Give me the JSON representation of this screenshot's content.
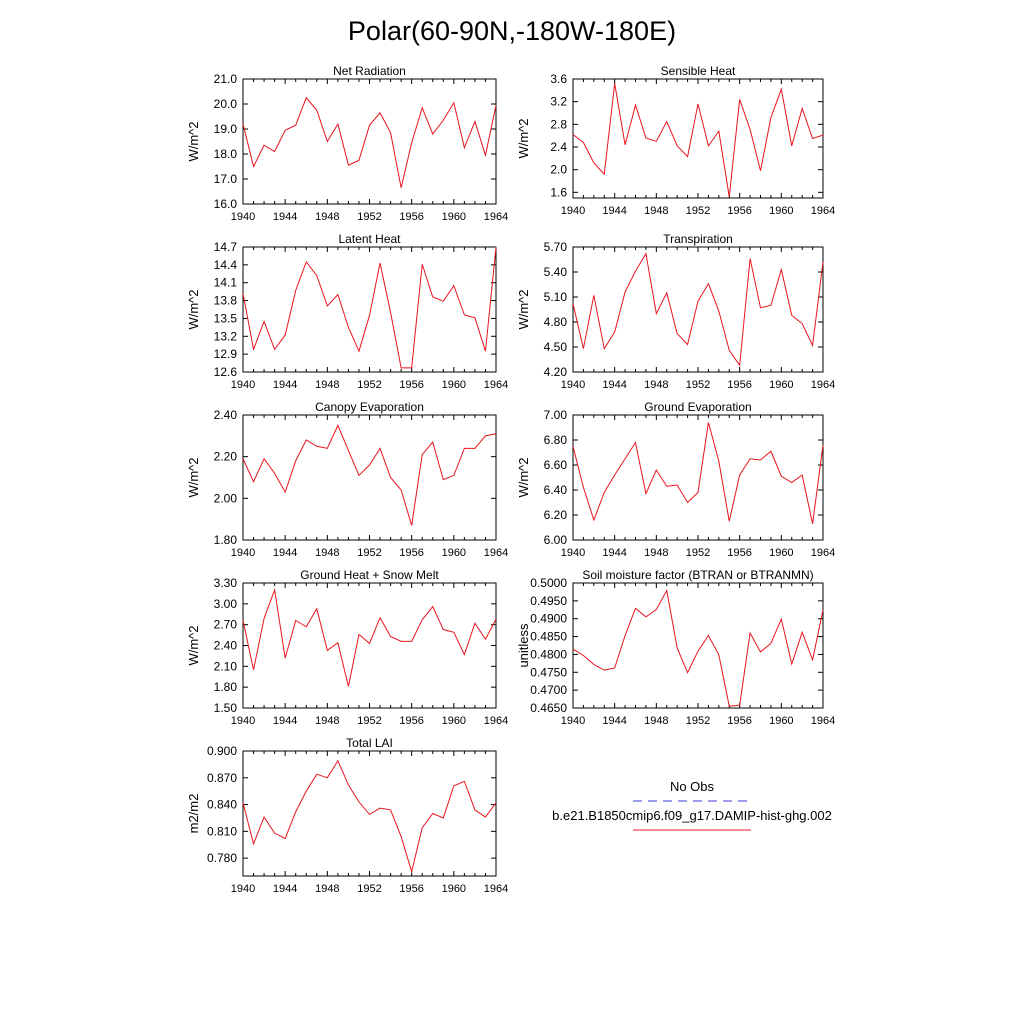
{
  "page": {
    "title": "Polar(60-90N,-180W-180E)"
  },
  "legend": {
    "entries": [
      {
        "label": "No Obs",
        "color": "#3a3ad6",
        "style": "dashed"
      },
      {
        "label": "b.e21.B1850cmip6.f09_g17.DAMIP-hist-ghg.002",
        "color": "#e8141e",
        "style": "solid"
      }
    ]
  },
  "chart_data": [
    {
      "type": "line",
      "title": "Net Radiation",
      "ylabel": "W/m^2",
      "ylim": [
        16.0,
        21.0
      ],
      "yticks": [
        "16.0",
        "17.0",
        "18.0",
        "19.0",
        "20.0",
        "21.0"
      ],
      "xlim": [
        1940,
        1964
      ],
      "xticks": [
        "1940",
        "1944",
        "1948",
        "1952",
        "1956",
        "1960",
        "1964"
      ],
      "series": [
        {
          "color": "#e8141e",
          "x": [
            1940,
            1941,
            1942,
            1943,
            1944,
            1945,
            1946,
            1947,
            1948,
            1949,
            1950,
            1951,
            1952,
            1953,
            1954,
            1955,
            1956,
            1957,
            1958,
            1959,
            1960,
            1961,
            1962,
            1963,
            1964
          ],
          "values": [
            19.2,
            17.5,
            18.35,
            18.1,
            18.95,
            19.15,
            20.25,
            19.75,
            18.5,
            19.2,
            17.55,
            17.75,
            19.15,
            19.65,
            18.85,
            16.65,
            18.45,
            19.85,
            18.8,
            19.35,
            20.05,
            18.25,
            19.3,
            17.95,
            19.95
          ]
        }
      ]
    },
    {
      "type": "line",
      "title": "Sensible Heat",
      "ylabel": "W/m^2",
      "ylim": [
        1.5,
        3.6
      ],
      "yticks": [
        "1.6",
        "2.0",
        "2.4",
        "2.8",
        "3.2",
        "3.6"
      ],
      "xlim": [
        1940,
        1964
      ],
      "xticks": [
        "1940",
        "1944",
        "1948",
        "1952",
        "1956",
        "1960",
        "1964"
      ],
      "series": [
        {
          "color": "#e8141e",
          "x": [
            1940,
            1941,
            1942,
            1943,
            1944,
            1945,
            1946,
            1947,
            1948,
            1949,
            1950,
            1951,
            1952,
            1953,
            1954,
            1955,
            1956,
            1957,
            1958,
            1959,
            1960,
            1961,
            1962,
            1963,
            1964
          ],
          "values": [
            2.62,
            2.48,
            2.12,
            1.92,
            3.52,
            2.44,
            3.14,
            2.56,
            2.5,
            2.85,
            2.42,
            2.23,
            3.16,
            2.42,
            2.68,
            1.52,
            3.24,
            2.71,
            1.98,
            2.92,
            3.42,
            2.42,
            3.08,
            2.55,
            2.61
          ]
        }
      ]
    },
    {
      "type": "line",
      "title": "Latent Heat",
      "ylabel": "W/m^2",
      "ylim": [
        12.6,
        14.7
      ],
      "yticks": [
        "12.6",
        "12.9",
        "13.2",
        "13.5",
        "13.8",
        "14.1",
        "14.4",
        "14.7"
      ],
      "xlim": [
        1940,
        1964
      ],
      "xticks": [
        "1940",
        "1944",
        "1948",
        "1952",
        "1956",
        "1960",
        "1964"
      ],
      "series": [
        {
          "color": "#e8141e",
          "x": [
            1940,
            1941,
            1942,
            1943,
            1944,
            1945,
            1946,
            1947,
            1948,
            1949,
            1950,
            1951,
            1952,
            1953,
            1954,
            1955,
            1956,
            1957,
            1958,
            1959,
            1960,
            1961,
            1962,
            1963,
            1964
          ],
          "values": [
            13.92,
            12.98,
            13.45,
            12.98,
            13.22,
            13.97,
            14.45,
            14.22,
            13.71,
            13.9,
            13.35,
            12.95,
            13.55,
            14.43,
            13.6,
            12.67,
            12.67,
            14.41,
            13.86,
            13.79,
            14.05,
            13.56,
            13.51,
            12.95,
            14.7
          ]
        }
      ]
    },
    {
      "type": "line",
      "title": "Transpiration",
      "ylabel": "W/m^2",
      "ylim": [
        4.2,
        5.7
      ],
      "yticks": [
        "4.20",
        "4.50",
        "4.80",
        "5.10",
        "5.40",
        "5.70"
      ],
      "xlim": [
        1940,
        1964
      ],
      "xticks": [
        "1940",
        "1944",
        "1948",
        "1952",
        "1956",
        "1960",
        "1964"
      ],
      "series": [
        {
          "color": "#e8141e",
          "x": [
            1940,
            1941,
            1942,
            1943,
            1944,
            1945,
            1946,
            1947,
            1948,
            1949,
            1950,
            1951,
            1952,
            1953,
            1954,
            1955,
            1956,
            1957,
            1958,
            1959,
            1960,
            1961,
            1962,
            1963,
            1964
          ],
          "values": [
            5.02,
            4.48,
            5.12,
            4.48,
            4.68,
            5.16,
            5.41,
            5.62,
            4.9,
            5.15,
            4.66,
            4.53,
            5.05,
            5.26,
            4.93,
            4.46,
            4.28,
            5.56,
            4.97,
            5.0,
            5.43,
            4.88,
            4.78,
            4.52,
            5.52
          ]
        }
      ]
    },
    {
      "type": "line",
      "title": "Canopy Evaporation",
      "ylabel": "W/m^2",
      "ylim": [
        1.8,
        2.4
      ],
      "yticks": [
        "1.80",
        "2.00",
        "2.20",
        "2.40"
      ],
      "xlim": [
        1940,
        1964
      ],
      "xticks": [
        "1940",
        "1944",
        "1948",
        "1952",
        "1956",
        "1960",
        "1964"
      ],
      "series": [
        {
          "color": "#e8141e",
          "x": [
            1940,
            1941,
            1942,
            1943,
            1944,
            1945,
            1946,
            1947,
            1948,
            1949,
            1950,
            1951,
            1952,
            1953,
            1954,
            1955,
            1956,
            1957,
            1958,
            1959,
            1960,
            1961,
            1962,
            1963,
            1964
          ],
          "values": [
            2.19,
            2.08,
            2.19,
            2.12,
            2.03,
            2.18,
            2.28,
            2.25,
            2.24,
            2.35,
            2.23,
            2.11,
            2.16,
            2.24,
            2.1,
            2.04,
            1.87,
            2.21,
            2.27,
            2.09,
            2.11,
            2.24,
            2.24,
            2.3,
            2.31
          ]
        }
      ]
    },
    {
      "type": "line",
      "title": "Ground Evaporation",
      "ylabel": "W/m^2",
      "ylim": [
        6.0,
        7.0
      ],
      "yticks": [
        "6.00",
        "6.20",
        "6.40",
        "6.60",
        "6.80",
        "7.00"
      ],
      "xlim": [
        1940,
        1964
      ],
      "xticks": [
        "1940",
        "1944",
        "1948",
        "1952",
        "1956",
        "1960",
        "1964"
      ],
      "series": [
        {
          "color": "#e8141e",
          "x": [
            1940,
            1941,
            1942,
            1943,
            1944,
            1945,
            1946,
            1947,
            1948,
            1949,
            1950,
            1951,
            1952,
            1953,
            1954,
            1955,
            1956,
            1957,
            1958,
            1959,
            1960,
            1961,
            1962,
            1963,
            1964
          ],
          "values": [
            6.75,
            6.42,
            6.16,
            6.38,
            6.52,
            6.65,
            6.78,
            6.37,
            6.56,
            6.43,
            6.44,
            6.3,
            6.38,
            6.94,
            6.63,
            6.15,
            6.52,
            6.65,
            6.64,
            6.71,
            6.51,
            6.46,
            6.52,
            6.13,
            6.76
          ]
        }
      ]
    },
    {
      "type": "line",
      "title": "Ground Heat + Snow Melt",
      "ylabel": "W/m^2",
      "ylim": [
        1.5,
        3.3
      ],
      "yticks": [
        "1.50",
        "1.80",
        "2.10",
        "2.40",
        "2.70",
        "3.00",
        "3.30"
      ],
      "xlim": [
        1940,
        1964
      ],
      "xticks": [
        "1940",
        "1944",
        "1948",
        "1952",
        "1956",
        "1960",
        "1964"
      ],
      "series": [
        {
          "color": "#e8141e",
          "x": [
            1940,
            1941,
            1942,
            1943,
            1944,
            1945,
            1946,
            1947,
            1948,
            1949,
            1950,
            1951,
            1952,
            1953,
            1954,
            1955,
            1956,
            1957,
            1958,
            1959,
            1960,
            1961,
            1962,
            1963,
            1964
          ],
          "values": [
            2.76,
            2.05,
            2.79,
            3.2,
            2.22,
            2.76,
            2.67,
            2.93,
            2.33,
            2.44,
            1.81,
            2.56,
            2.43,
            2.8,
            2.53,
            2.46,
            2.46,
            2.77,
            2.96,
            2.63,
            2.59,
            2.27,
            2.72,
            2.49,
            2.78
          ]
        }
      ]
    },
    {
      "type": "line",
      "title": "Soil moisture factor (BTRAN or BTRANMN)",
      "ylabel": "unitless",
      "ylim": [
        0.465,
        0.5
      ],
      "yticks": [
        "0.4650",
        "0.4700",
        "0.4750",
        "0.4800",
        "0.4850",
        "0.4900",
        "0.4950",
        "0.5000"
      ],
      "xlim": [
        1940,
        1964
      ],
      "xticks": [
        "1940",
        "1944",
        "1948",
        "1952",
        "1956",
        "1960",
        "1964"
      ],
      "series": [
        {
          "color": "#e8141e",
          "x": [
            1940,
            1941,
            1942,
            1943,
            1944,
            1945,
            1946,
            1947,
            1948,
            1949,
            1950,
            1951,
            1952,
            1953,
            1954,
            1955,
            1956,
            1957,
            1958,
            1959,
            1960,
            1961,
            1962,
            1963,
            1964
          ],
          "values": [
            0.4815,
            0.4797,
            0.4772,
            0.4756,
            0.4762,
            0.4853,
            0.4929,
            0.4905,
            0.4926,
            0.4979,
            0.4818,
            0.4749,
            0.4809,
            0.4853,
            0.4799,
            0.4655,
            0.4658,
            0.486,
            0.4807,
            0.4831,
            0.4899,
            0.4773,
            0.4862,
            0.4785,
            0.4925
          ]
        }
      ]
    },
    {
      "type": "line",
      "title": "Total LAI",
      "ylabel": "m2/m2",
      "ylim": [
        0.76,
        0.9
      ],
      "yticks": [
        "0.780",
        "0.810",
        "0.840",
        "0.870",
        "0.900"
      ],
      "xlim": [
        1940,
        1964
      ],
      "xticks": [
        "1940",
        "1944",
        "1948",
        "1952",
        "1956",
        "1960",
        "1964"
      ],
      "series": [
        {
          "color": "#e8141e",
          "x": [
            1940,
            1941,
            1942,
            1943,
            1944,
            1945,
            1946,
            1947,
            1948,
            1949,
            1950,
            1951,
            1952,
            1953,
            1954,
            1955,
            1956,
            1957,
            1958,
            1959,
            1960,
            1961,
            1962,
            1963,
            1964
          ],
          "values": [
            0.842,
            0.796,
            0.826,
            0.808,
            0.802,
            0.832,
            0.855,
            0.874,
            0.87,
            0.889,
            0.862,
            0.843,
            0.829,
            0.836,
            0.834,
            0.804,
            0.765,
            0.814,
            0.83,
            0.825,
            0.861,
            0.866,
            0.834,
            0.826,
            0.842
          ]
        }
      ]
    }
  ]
}
